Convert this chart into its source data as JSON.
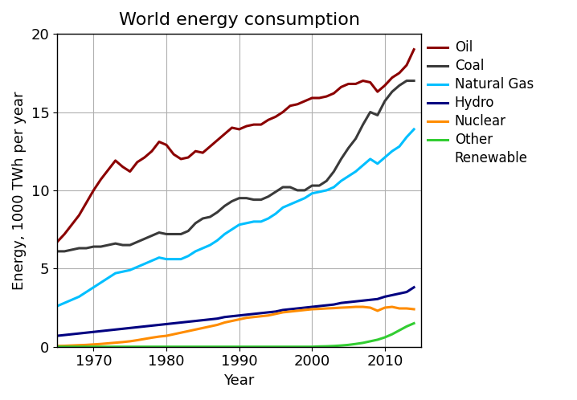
{
  "title": "World energy consumption",
  "xlabel": "Year",
  "ylabel": "Energy, 1000 TWh per year",
  "ylim": [
    0,
    20
  ],
  "xlim": [
    1965,
    2015
  ],
  "yticks": [
    0,
    5,
    10,
    15,
    20
  ],
  "xticks": [
    1970,
    1980,
    1990,
    2000,
    2010
  ],
  "years": [
    1965,
    1966,
    1967,
    1968,
    1969,
    1970,
    1971,
    1972,
    1973,
    1974,
    1975,
    1976,
    1977,
    1978,
    1979,
    1980,
    1981,
    1982,
    1983,
    1984,
    1985,
    1986,
    1987,
    1988,
    1989,
    1990,
    1991,
    1992,
    1993,
    1994,
    1995,
    1996,
    1997,
    1998,
    1999,
    2000,
    2001,
    2002,
    2003,
    2004,
    2005,
    2006,
    2007,
    2008,
    2009,
    2010,
    2011,
    2012,
    2013,
    2014
  ],
  "oil": [
    6.7,
    7.2,
    7.8,
    8.4,
    9.2,
    10.0,
    10.7,
    11.3,
    11.9,
    11.5,
    11.2,
    11.8,
    12.1,
    12.5,
    13.1,
    12.9,
    12.3,
    12.0,
    12.1,
    12.5,
    12.4,
    12.8,
    13.2,
    13.6,
    14.0,
    13.9,
    14.1,
    14.2,
    14.2,
    14.5,
    14.7,
    15.0,
    15.4,
    15.5,
    15.7,
    15.9,
    15.9,
    16.0,
    16.2,
    16.6,
    16.8,
    16.8,
    17.0,
    16.9,
    16.3,
    16.7,
    17.2,
    17.5,
    18.0,
    19.0
  ],
  "coal": [
    6.1,
    6.1,
    6.2,
    6.3,
    6.3,
    6.4,
    6.4,
    6.5,
    6.6,
    6.5,
    6.5,
    6.7,
    6.9,
    7.1,
    7.3,
    7.2,
    7.2,
    7.2,
    7.4,
    7.9,
    8.2,
    8.3,
    8.6,
    9.0,
    9.3,
    9.5,
    9.5,
    9.4,
    9.4,
    9.6,
    9.9,
    10.2,
    10.2,
    10.0,
    10.0,
    10.3,
    10.3,
    10.6,
    11.2,
    12.0,
    12.7,
    13.3,
    14.2,
    15.0,
    14.8,
    15.7,
    16.3,
    16.7,
    17.0,
    17.0
  ],
  "natural_gas": [
    2.6,
    2.8,
    3.0,
    3.2,
    3.5,
    3.8,
    4.1,
    4.4,
    4.7,
    4.8,
    4.9,
    5.1,
    5.3,
    5.5,
    5.7,
    5.6,
    5.6,
    5.6,
    5.8,
    6.1,
    6.3,
    6.5,
    6.8,
    7.2,
    7.5,
    7.8,
    7.9,
    8.0,
    8.0,
    8.2,
    8.5,
    8.9,
    9.1,
    9.3,
    9.5,
    9.8,
    9.9,
    10.0,
    10.2,
    10.6,
    10.9,
    11.2,
    11.6,
    12.0,
    11.7,
    12.1,
    12.5,
    12.8,
    13.4,
    13.9
  ],
  "hydro": [
    0.7,
    0.75,
    0.8,
    0.85,
    0.9,
    0.95,
    1.0,
    1.05,
    1.1,
    1.15,
    1.2,
    1.25,
    1.3,
    1.35,
    1.4,
    1.45,
    1.5,
    1.55,
    1.6,
    1.65,
    1.7,
    1.75,
    1.8,
    1.9,
    1.95,
    2.0,
    2.05,
    2.1,
    2.15,
    2.2,
    2.25,
    2.35,
    2.4,
    2.45,
    2.5,
    2.55,
    2.6,
    2.65,
    2.7,
    2.8,
    2.85,
    2.9,
    2.95,
    3.0,
    3.05,
    3.2,
    3.3,
    3.4,
    3.5,
    3.8
  ],
  "nuclear": [
    0.05,
    0.06,
    0.08,
    0.1,
    0.12,
    0.15,
    0.18,
    0.22,
    0.26,
    0.3,
    0.35,
    0.42,
    0.5,
    0.58,
    0.65,
    0.7,
    0.8,
    0.9,
    1.0,
    1.1,
    1.2,
    1.3,
    1.4,
    1.55,
    1.65,
    1.75,
    1.85,
    1.9,
    1.95,
    2.0,
    2.1,
    2.2,
    2.25,
    2.3,
    2.35,
    2.4,
    2.42,
    2.45,
    2.47,
    2.5,
    2.52,
    2.55,
    2.55,
    2.5,
    2.3,
    2.5,
    2.55,
    2.45,
    2.45,
    2.4
  ],
  "other_renewable": [
    0.0,
    0.0,
    0.0,
    0.0,
    0.0,
    0.0,
    0.0,
    0.0,
    0.0,
    0.0,
    0.0,
    0.0,
    0.0,
    0.0,
    0.0,
    0.0,
    0.0,
    0.0,
    0.0,
    0.0,
    0.0,
    0.0,
    0.0,
    0.0,
    0.0,
    0.0,
    0.0,
    0.0,
    0.0,
    0.0,
    0.0,
    0.0,
    0.0,
    0.0,
    0.0,
    0.0,
    0.02,
    0.03,
    0.05,
    0.08,
    0.12,
    0.18,
    0.25,
    0.35,
    0.45,
    0.6,
    0.8,
    1.05,
    1.3,
    1.5
  ],
  "colors": {
    "oil": "#8B0000",
    "coal": "#3a3a3a",
    "natural_gas": "#00BFFF",
    "hydro": "#000080",
    "nuclear": "#FF8C00",
    "other_renewable": "#32CD32"
  },
  "linewidth": 2.2,
  "title_fontsize": 16,
  "label_fontsize": 13,
  "tick_fontsize": 13,
  "legend_fontsize": 12,
  "grid_color": "#b0b0b0",
  "bg_color": "#ffffff"
}
